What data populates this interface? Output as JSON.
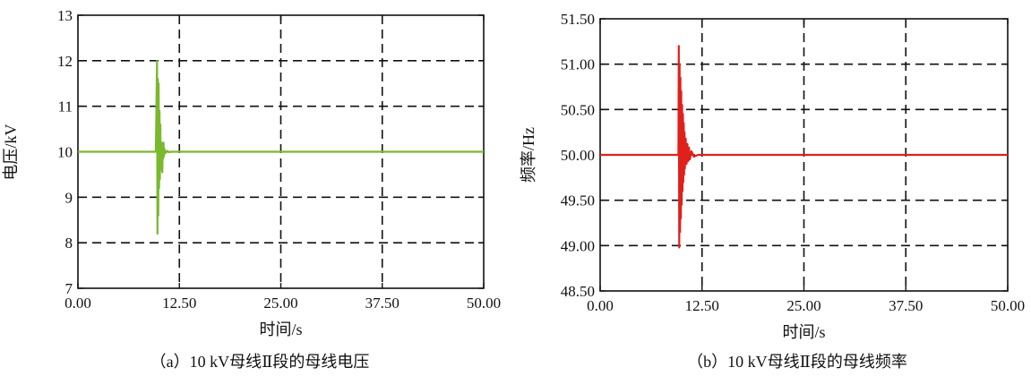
{
  "chart_data": [
    {
      "type": "line",
      "caption": "（a）10 kV母线Ⅱ段的母线电压",
      "xlabel": "时间/s",
      "ylabel": "电压/kV",
      "xlim": [
        0,
        50
      ],
      "ylim": [
        7,
        13
      ],
      "x_ticks": [
        "0.00",
        "12.50",
        "25.00",
        "37.50",
        "50.00"
      ],
      "y_ticks": [
        "7",
        "8",
        "9",
        "10",
        "11",
        "12",
        "13"
      ],
      "grid": "dashed",
      "color": "#7ab82e",
      "series": [
        {
          "x": [
            0.0,
            9.6,
            9.75,
            9.8,
            9.85,
            9.9,
            9.95,
            10.0,
            10.05,
            10.1,
            10.15,
            10.2,
            10.25,
            10.3,
            10.35,
            10.4,
            10.45,
            10.5,
            10.55,
            10.6,
            10.7,
            10.8,
            11.0,
            11.2,
            11.5,
            12.0,
            50.0
          ],
          "y": [
            10.0,
            10.0,
            12.0,
            8.2,
            11.6,
            8.6,
            11.5,
            9.2,
            10.9,
            9.4,
            10.6,
            9.8,
            10.0,
            9.6,
            10.2,
            9.55,
            10.1,
            9.85,
            10.2,
            9.9,
            10.05,
            9.97,
            10.02,
            9.99,
            10.0,
            10.0,
            10.0
          ]
        }
      ]
    },
    {
      "type": "line",
      "caption": "（b）10 kV母线Ⅱ段的母线频率",
      "xlabel": "时间/s",
      "ylabel": "频率/Hz",
      "xlim": [
        0,
        50
      ],
      "ylim": [
        48.5,
        51.5
      ],
      "x_ticks": [
        "0.00",
        "12.50",
        "25.00",
        "37.50",
        "50.00"
      ],
      "y_ticks": [
        "48.50",
        "49.00",
        "49.50",
        "50.00",
        "50.50",
        "51.00",
        "51.50"
      ],
      "grid": "dashed",
      "color": "#e0201b",
      "series": [
        {
          "x": [
            0.0,
            9.6,
            9.65,
            9.7,
            9.75,
            9.8,
            9.85,
            9.9,
            9.95,
            10.0,
            10.05,
            10.1,
            10.15,
            10.2,
            10.25,
            10.3,
            10.35,
            10.4,
            10.5,
            10.6,
            10.7,
            10.8,
            10.9,
            11.0,
            11.2,
            11.5,
            12.0,
            50.0
          ],
          "y": [
            50.0,
            50.0,
            51.2,
            48.98,
            51.0,
            49.15,
            50.85,
            49.3,
            50.7,
            49.45,
            50.55,
            49.6,
            50.45,
            49.7,
            50.35,
            49.78,
            50.25,
            49.85,
            50.18,
            49.9,
            50.12,
            49.93,
            50.08,
            49.95,
            50.04,
            49.98,
            50.0,
            50.0
          ]
        }
      ]
    }
  ]
}
